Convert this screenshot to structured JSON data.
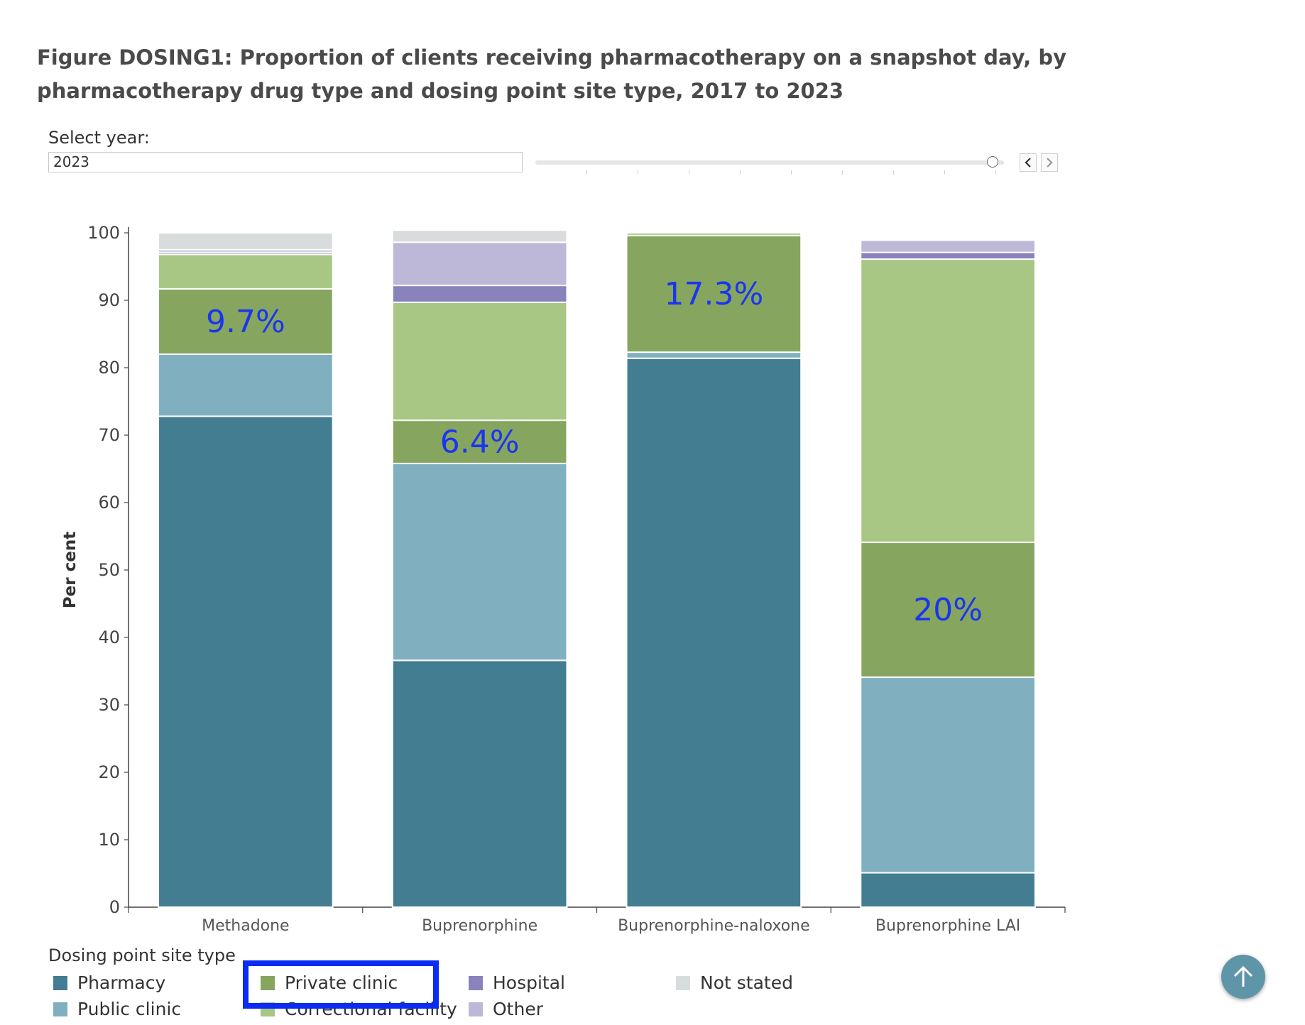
{
  "title": "Figure DOSING1: Proportion of clients receiving pharmacotherapy on a snapshot day, by pharmacotherapy drug type and dosing point site type, 2017 to 2023",
  "year_selector": {
    "label": "Select year:",
    "value": "2023",
    "prev_icon": "chevron-left-icon",
    "next_icon": "chevron-right-icon",
    "slider_position": 1.0
  },
  "scroll_top_icon": "arrow-up-icon",
  "chart_data": {
    "type": "bar",
    "stacked": true,
    "categories": [
      "Methadone",
      "Buprenorphine",
      "Buprenorphine-naloxone",
      "Buprenorphine LAI"
    ],
    "ylabel": "Per cent",
    "ylim": [
      0,
      100
    ],
    "yticks": [
      0,
      10,
      20,
      30,
      40,
      50,
      60,
      70,
      80,
      90,
      100
    ],
    "grid": false,
    "legend_title": "Dosing point site type",
    "legend_position": "bottom",
    "series": [
      {
        "name": "Pharmacy",
        "color": "#427d92",
        "values": [
          72.8,
          36.6,
          81.4,
          5.1
        ]
      },
      {
        "name": "Public clinic",
        "color": "#80b0bf",
        "values": [
          9.2,
          29.2,
          0.9,
          29.0
        ]
      },
      {
        "name": "Private clinic",
        "color": "#86a660",
        "values": [
          9.7,
          6.4,
          17.3,
          20.0
        ]
      },
      {
        "name": "Correctional facility",
        "color": "#a8c684",
        "values": [
          5.1,
          17.5,
          0.4,
          42.0
        ]
      },
      {
        "name": "Hospital",
        "color": "#8a82bd",
        "values": [
          0.3,
          2.5,
          0.0,
          1.0
        ]
      },
      {
        "name": "Other",
        "color": "#bdb8d8",
        "values": [
          0.4,
          6.4,
          0.0,
          1.8
        ]
      },
      {
        "name": "Not stated",
        "color": "#d9dcdc",
        "values": [
          2.5,
          1.8,
          0.0,
          0.0
        ]
      }
    ],
    "annotations": [
      {
        "category": "Methadone",
        "series": "Private clinic",
        "text": "9.7%"
      },
      {
        "category": "Buprenorphine",
        "series": "Private clinic",
        "text": "6.4%"
      },
      {
        "category": "Buprenorphine-naloxone",
        "series": "Private clinic",
        "text": "17.3%"
      },
      {
        "category": "Buprenorphine LAI",
        "series": "Private clinic",
        "text": "20%"
      }
    ],
    "annotation_color": "#1a35f0",
    "highlighted_legend_entry": "Private clinic",
    "highlight_color": "#0a2cf5"
  }
}
